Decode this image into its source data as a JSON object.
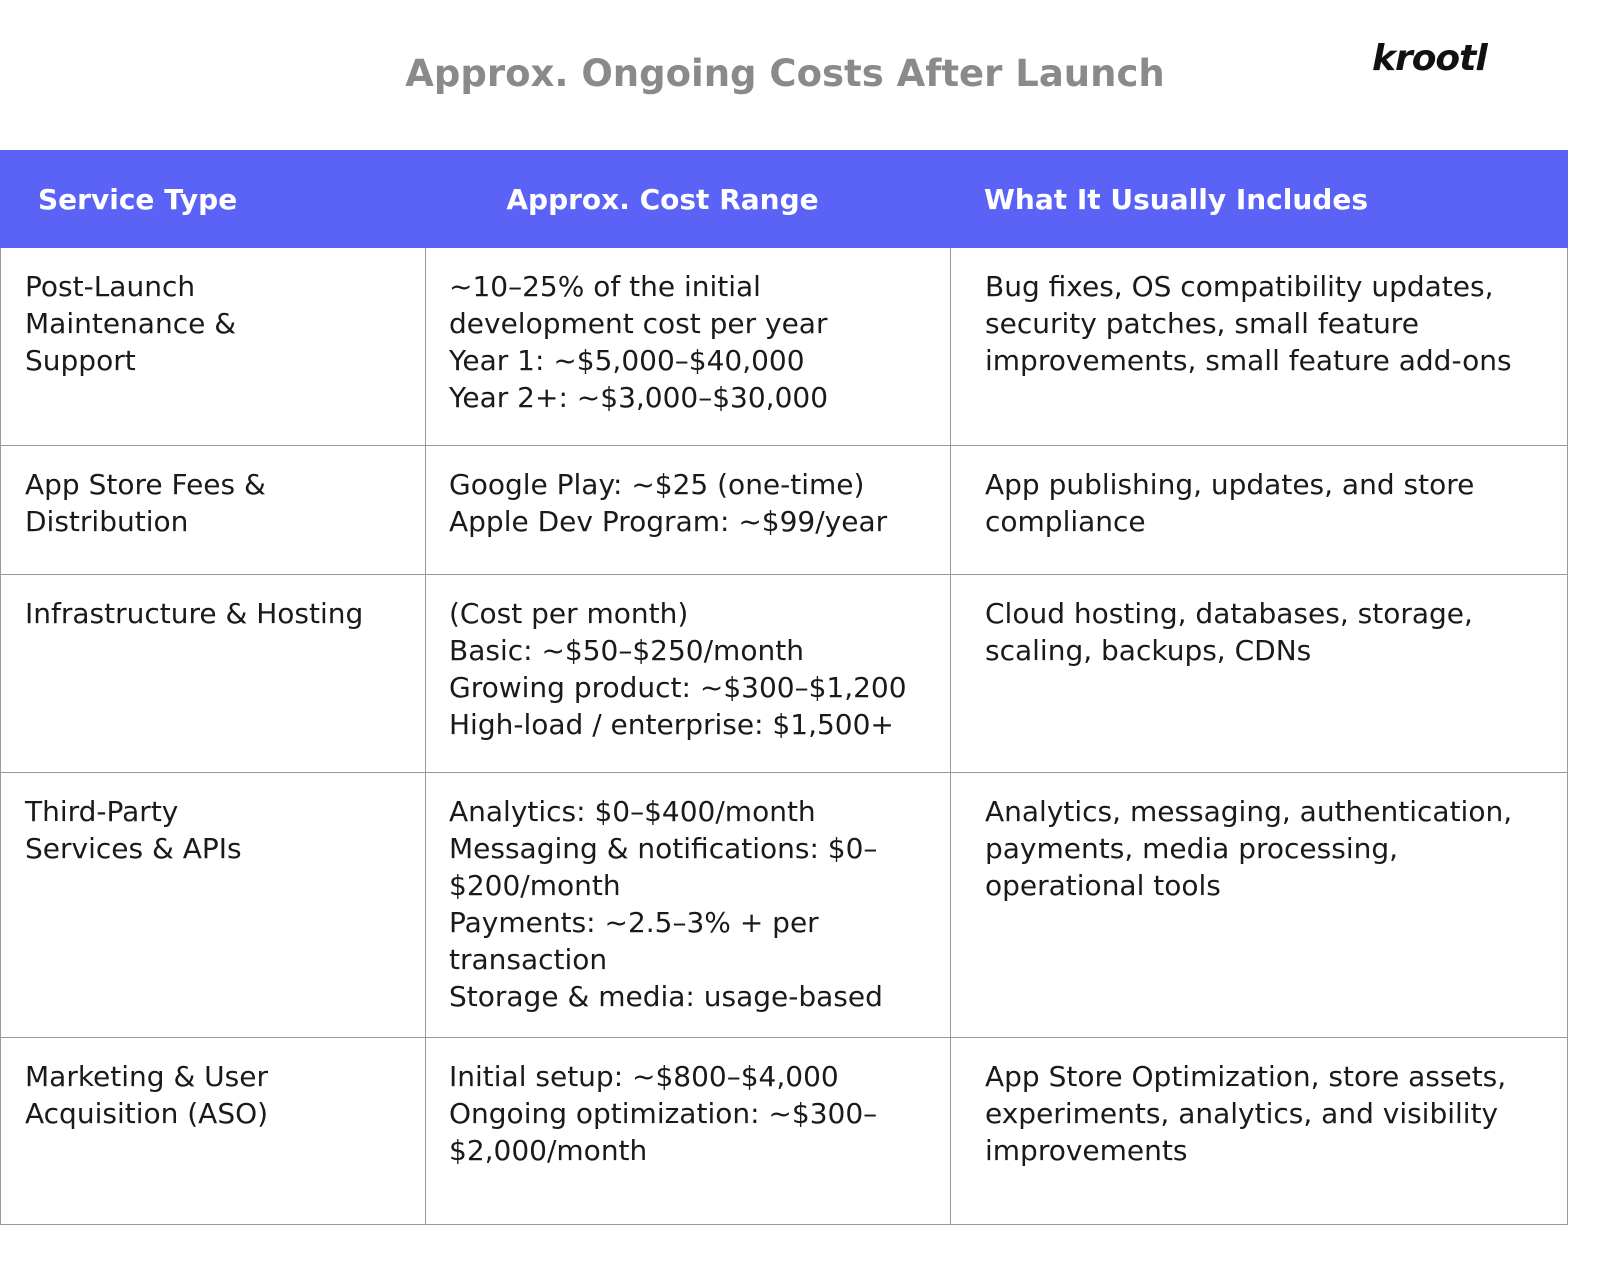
{
  "header": {
    "title": "Approx. Ongoing Costs After Launch",
    "logo": "krootl"
  },
  "table": {
    "columns": [
      "Service Type",
      "Approx. Cost Range",
      "What It Usually Includes"
    ],
    "rows": [
      [
        [
          "Post-Launch",
          "Maintenance &",
          "Support"
        ],
        [
          "~10–25% of the initial",
          "development cost per year",
          "Year 1: ~$5,000–$40,000",
          "Year 2+: ~$3,000–$30,000"
        ],
        [
          "Bug fixes, OS compatibility updates,",
          "security patches, small feature",
          "improvements, small feature add-ons"
        ]
      ],
      [
        [
          "App Store Fees &",
          "Distribution"
        ],
        [
          "Google Play: ~$25 (one-time)",
          "Apple Dev Program: ~$99/year"
        ],
        [
          "App publishing, updates, and store",
          "compliance"
        ]
      ],
      [
        [
          "Infrastructure & Hosting"
        ],
        [
          "(Cost per month)",
          "Basic: ~$50–$250/month",
          "Growing product: ~$300–$1,200",
          "High-load / enterprise: $1,500+"
        ],
        [
          "Cloud hosting, databases, storage,",
          "scaling, backups, CDNs"
        ]
      ],
      [
        [
          "Third-Party",
          "Services & APIs"
        ],
        [
          "Analytics: $0–$400/month",
          "Messaging & notifications: $0–",
          "$200/month",
          "Payments: ~2.5–3% + per",
          "transaction",
          "Storage & media: usage-based"
        ],
        [
          "Analytics, messaging, authentication,",
          "payments, media processing,",
          "operational tools"
        ]
      ],
      [
        [
          "Marketing & User",
          "Acquisition (ASO)"
        ],
        [
          "Initial setup: ~$800–$4,000",
          "Ongoing optimization: ~$300–",
          "$2,000/month"
        ],
        [
          "App Store Optimization, store assets,",
          "experiments, analytics, and visibility",
          "improvements"
        ]
      ]
    ]
  }
}
